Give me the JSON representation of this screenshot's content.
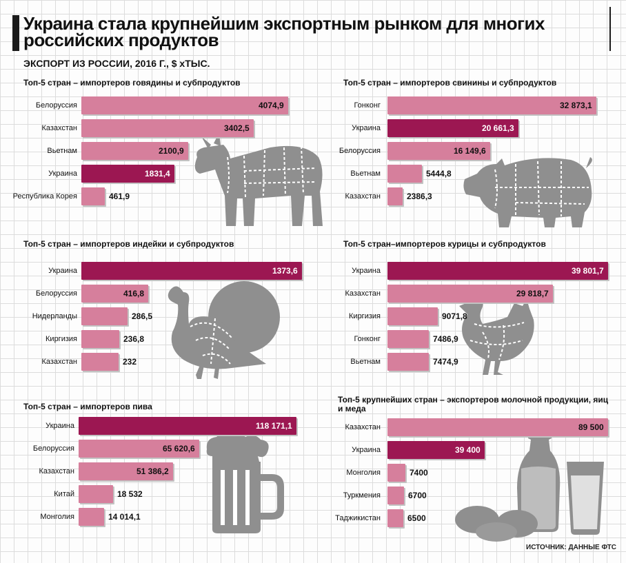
{
  "title": "Украина стала крупнейшим экспортным рынком для многих российских продуктов",
  "subtitle": "ЭКСПОРТ ИЗ РОССИИ, 2016 Г., $ хТЫС.",
  "source": "ИСТОЧНИК: ДАННЫЕ ФТС",
  "colors": {
    "bar": "#d67f9c",
    "highlight": "#9c1752",
    "illustration": "#8f8f8f"
  },
  "icons": [
    "cow-icon",
    "pig-icon",
    "turkey-icon",
    "chicken-icon",
    "beer-mug-icon",
    "milk-eggs-icon"
  ],
  "chart_data": [
    {
      "type": "bar",
      "title": "Топ-5 стран – импортеров говядины и субпродуктов",
      "categories": [
        "Белоруссия",
        "Казахстан",
        "Вьетнам",
        "Украина",
        "Республика Корея"
      ],
      "values": [
        4074.9,
        3402.5,
        2100.9,
        1831.4,
        461.9
      ],
      "labels": [
        "4074,9",
        "3402,5",
        "2100,9",
        "1831,4",
        "461,9"
      ],
      "highlight": "Украина"
    },
    {
      "type": "bar",
      "title": "Топ-5 стран – импортеров свинины и субпродуктов",
      "categories": [
        "Гонконг",
        "Украина",
        "Белоруссия",
        "Вьетнам",
        "Казахстан"
      ],
      "values": [
        32873.1,
        20661.3,
        16149.6,
        5444.8,
        2386.3
      ],
      "labels": [
        "32 873,1",
        "20 661,3",
        "16 149,6",
        "5444,8",
        "2386,3"
      ],
      "highlight": "Украина"
    },
    {
      "type": "bar",
      "title": "Топ-5 стран – импортеров индейки и субпродуктов",
      "categories": [
        "Украина",
        "Белоруссия",
        "Нидерланды",
        "Киргизия",
        "Казахстан"
      ],
      "values": [
        1373.6,
        416.8,
        286.5,
        236.8,
        232
      ],
      "labels": [
        "1373,6",
        "416,8",
        "286,5",
        "236,8",
        "232"
      ],
      "highlight": "Украина"
    },
    {
      "type": "bar",
      "title": "Топ-5 стран–импортеров курицы и субпродуктов",
      "categories": [
        "Украина",
        "Казахстан",
        "Киргизия",
        "Гонконг",
        "Вьетнам"
      ],
      "values": [
        39801.7,
        29818.7,
        9071.8,
        7486.9,
        7474.9
      ],
      "labels": [
        "39 801,7",
        "29 818,7",
        "9071,8",
        "7486,9",
        "7474,9"
      ],
      "highlight": "Украина"
    },
    {
      "type": "bar",
      "title": "Топ-5 стран – импортеров пива",
      "categories": [
        "Украина",
        "Белоруссия",
        "Казахстан",
        "Китай",
        "Монголия"
      ],
      "values": [
        118171.1,
        65620.6,
        51386.2,
        18532,
        14014.1
      ],
      "labels": [
        "118 171,1",
        "65 620,6",
        "51 386,2",
        "18 532",
        "14 014,1"
      ],
      "highlight": "Украина"
    },
    {
      "type": "bar",
      "title": "Топ-5 крупнейших стран – экспортеров молочной продукции, яиц и меда",
      "categories": [
        "Казахстан",
        "Украина",
        "Монголия",
        "Туркмения",
        "Таджикистан"
      ],
      "values": [
        89500,
        39400,
        7400,
        6700,
        6500
      ],
      "labels": [
        "89 500",
        "39 400",
        "7400",
        "6700",
        "6500"
      ],
      "highlight": "Украина"
    }
  ]
}
